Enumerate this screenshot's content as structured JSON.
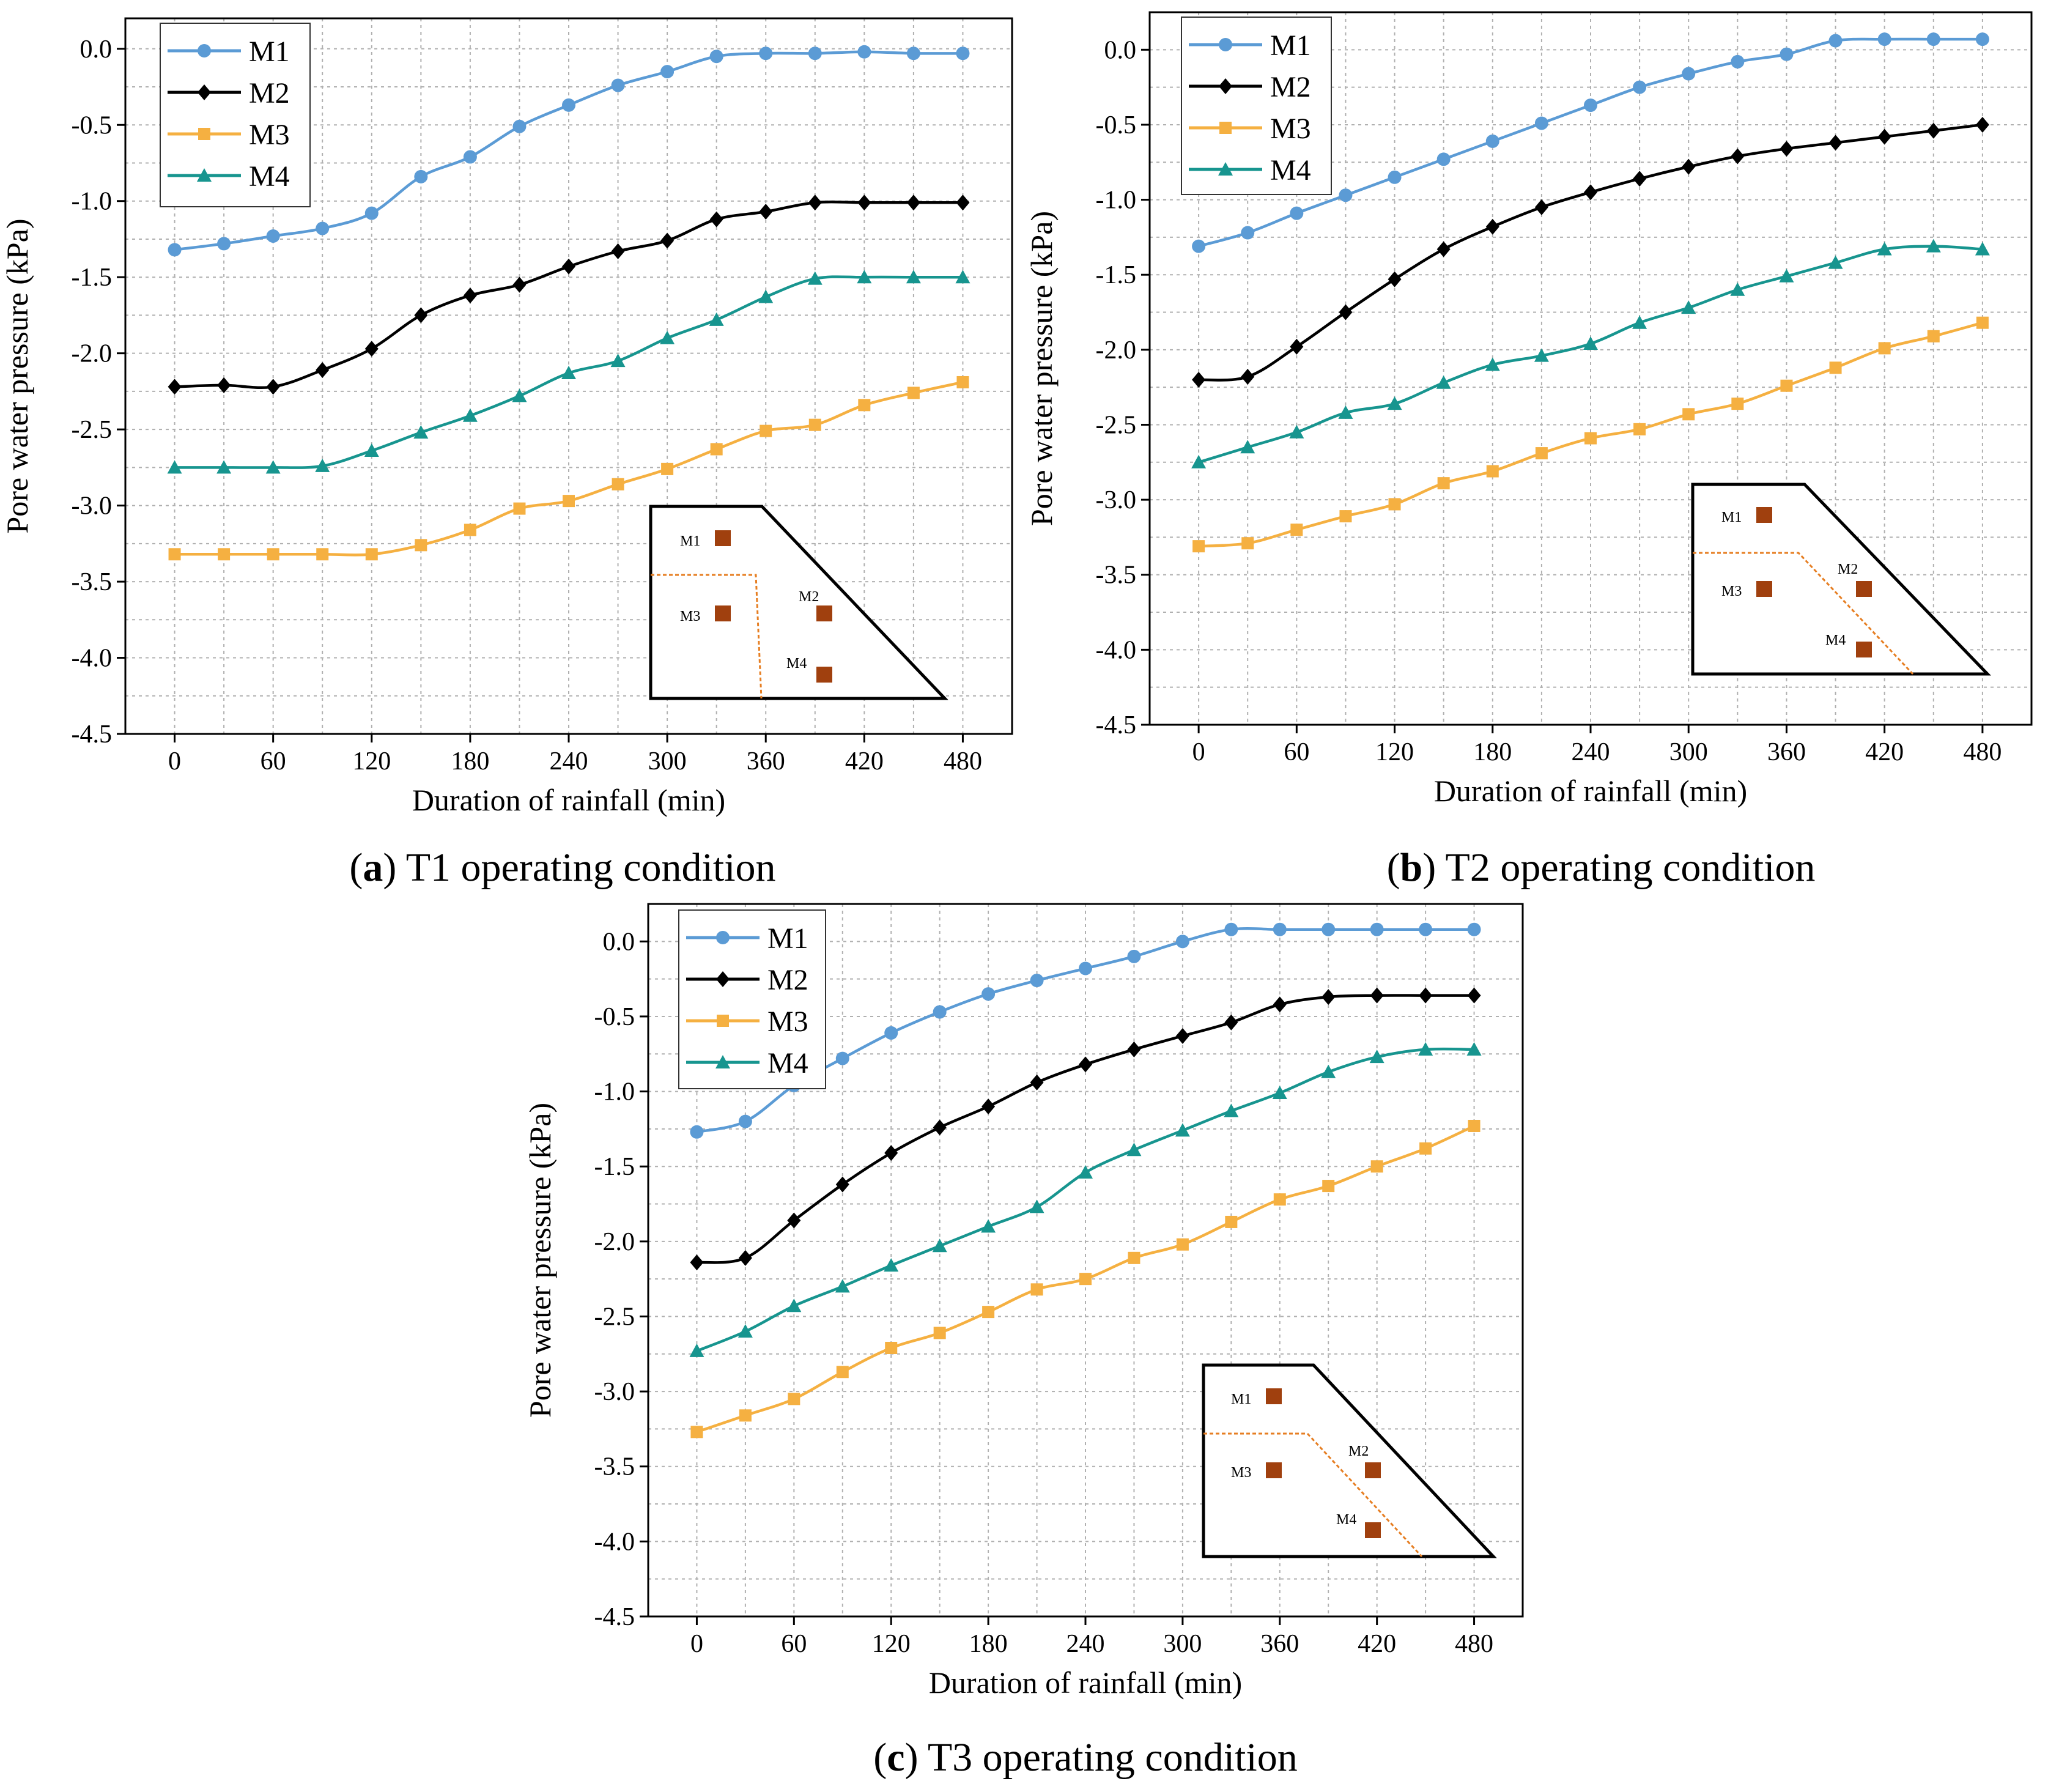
{
  "chart_data": [
    {
      "id": "a",
      "type": "line",
      "caption_letter": "a",
      "caption_rest": " T1 operating condition",
      "xlabel": "Duration of rainfall (min)",
      "ylabel": "Pore water pressure (kPa)",
      "xticks": [
        0,
        60,
        120,
        180,
        240,
        300,
        360,
        420,
        480
      ],
      "yticks": [
        "0.0",
        "-0.5",
        "-1.0",
        "-1.5",
        "-2.0",
        "-2.5",
        "-3.0",
        "-3.5",
        "-4.0",
        "-4.5"
      ],
      "xlim": [
        -30,
        510
      ],
      "ylim": [
        -4.5,
        0.2
      ],
      "legend_position": "top-left",
      "grid": true,
      "x": [
        0,
        30,
        60,
        90,
        120,
        150,
        180,
        210,
        240,
        270,
        300,
        330,
        360,
        390,
        420,
        450,
        480
      ],
      "series": [
        {
          "name": "M1",
          "values": [
            -1.32,
            -1.28,
            -1.23,
            -1.18,
            -1.08,
            -0.84,
            -0.71,
            -0.51,
            -0.37,
            -0.24,
            -0.15,
            -0.05,
            -0.03,
            -0.03,
            -0.02,
            -0.03,
            -0.03
          ]
        },
        {
          "name": "M2",
          "values": [
            -2.22,
            -2.21,
            -2.22,
            -2.11,
            -1.97,
            -1.75,
            -1.62,
            -1.55,
            -1.43,
            -1.33,
            -1.26,
            -1.12,
            -1.07,
            -1.01,
            -1.01,
            -1.01,
            -1.01
          ]
        },
        {
          "name": "M3",
          "values": [
            -3.32,
            -3.32,
            -3.32,
            -3.32,
            -3.32,
            -3.26,
            -3.16,
            -3.02,
            -2.97,
            -2.86,
            -2.76,
            -2.63,
            -2.51,
            -2.47,
            -2.34,
            -2.26,
            -2.19
          ]
        },
        {
          "name": "M4",
          "values": [
            -2.75,
            -2.75,
            -2.75,
            -2.74,
            -2.64,
            -2.52,
            -2.41,
            -2.28,
            -2.13,
            -2.05,
            -1.9,
            -1.78,
            -1.63,
            -1.51,
            -1.5,
            -1.5,
            -1.5
          ]
        }
      ],
      "inset_labels": [
        "M1",
        "M2",
        "M3",
        "M4"
      ]
    },
    {
      "id": "b",
      "type": "line",
      "caption_letter": "b",
      "caption_rest": " T2 operating condition",
      "xlabel": "Duration of rainfall (min)",
      "ylabel": "Pore water pressure (kPa)",
      "xticks": [
        0,
        60,
        120,
        180,
        240,
        300,
        360,
        420,
        480
      ],
      "yticks": [
        "0.0",
        "-0.5",
        "-1.0",
        "-1.5",
        "-2.0",
        "-2.5",
        "-3.0",
        "-3.5",
        "-4.0",
        "-4.5"
      ],
      "xlim": [
        -30,
        510
      ],
      "ylim": [
        -4.5,
        0.25
      ],
      "legend_position": "top-left",
      "grid": true,
      "x": [
        0,
        30,
        60,
        90,
        120,
        150,
        180,
        210,
        240,
        270,
        300,
        330,
        360,
        390,
        420,
        450,
        480
      ],
      "series": [
        {
          "name": "M1",
          "values": [
            -1.31,
            -1.22,
            -1.09,
            -0.97,
            -0.85,
            -0.73,
            -0.61,
            -0.49,
            -0.37,
            -0.25,
            -0.16,
            -0.08,
            -0.03,
            0.06,
            0.07,
            0.07,
            0.07
          ]
        },
        {
          "name": "M2",
          "values": [
            -2.2,
            -2.18,
            -1.98,
            -1.75,
            -1.53,
            -1.33,
            -1.18,
            -1.05,
            -0.95,
            -0.86,
            -0.78,
            -0.71,
            -0.66,
            -0.62,
            -0.58,
            -0.54,
            -0.5
          ]
        },
        {
          "name": "M3",
          "values": [
            -3.31,
            -3.29,
            -3.2,
            -3.11,
            -3.03,
            -2.89,
            -2.81,
            -2.69,
            -2.59,
            -2.53,
            -2.43,
            -2.36,
            -2.24,
            -2.12,
            -1.99,
            -1.91,
            -1.82
          ]
        },
        {
          "name": "M4",
          "values": [
            -2.75,
            -2.65,
            -2.55,
            -2.42,
            -2.36,
            -2.22,
            -2.1,
            -2.04,
            -1.96,
            -1.82,
            -1.72,
            -1.6,
            -1.51,
            -1.42,
            -1.33,
            -1.31,
            -1.33
          ]
        }
      ],
      "inset_labels": [
        "M1",
        "M2",
        "M3",
        "M4"
      ]
    },
    {
      "id": "c",
      "type": "line",
      "caption_letter": "c",
      "caption_rest": " T3 operating condition",
      "xlabel": "Duration of rainfall (min)",
      "ylabel": "Pore water pressure (kPa)",
      "xticks": [
        0,
        60,
        120,
        180,
        240,
        300,
        360,
        420,
        480
      ],
      "yticks": [
        "0.0",
        "-0.5",
        "-1.0",
        "-1.5",
        "-2.0",
        "-2.5",
        "-3.0",
        "-3.5",
        "-4.0",
        "-4.5"
      ],
      "xlim": [
        -30,
        510
      ],
      "ylim": [
        -4.5,
        0.25
      ],
      "legend_position": "top-left",
      "grid": true,
      "x": [
        0,
        30,
        60,
        90,
        120,
        150,
        180,
        210,
        240,
        270,
        300,
        330,
        360,
        390,
        420,
        450,
        480
      ],
      "series": [
        {
          "name": "M1",
          "values": [
            -1.27,
            -1.2,
            -0.96,
            -0.78,
            -0.61,
            -0.47,
            -0.35,
            -0.26,
            -0.18,
            -0.1,
            0.0,
            0.08,
            0.08,
            0.08,
            0.08,
            0.08,
            0.08
          ]
        },
        {
          "name": "M2",
          "values": [
            -2.14,
            -2.11,
            -1.86,
            -1.62,
            -1.41,
            -1.24,
            -1.1,
            -0.94,
            -0.82,
            -0.72,
            -0.63,
            -0.54,
            -0.42,
            -0.37,
            -0.36,
            -0.36,
            -0.36
          ]
        },
        {
          "name": "M3",
          "values": [
            -3.27,
            -3.16,
            -3.05,
            -2.87,
            -2.71,
            -2.61,
            -2.47,
            -2.32,
            -2.25,
            -2.11,
            -2.02,
            -1.87,
            -1.72,
            -1.63,
            -1.5,
            -1.38,
            -1.23
          ]
        },
        {
          "name": "M4",
          "values": [
            -2.73,
            -2.6,
            -2.43,
            -2.3,
            -2.16,
            -2.03,
            -1.9,
            -1.77,
            -1.54,
            -1.39,
            -1.26,
            -1.13,
            -1.01,
            -0.87,
            -0.77,
            -0.72,
            -0.72
          ]
        }
      ],
      "inset_labels": [
        "M1",
        "M2",
        "M3",
        "M4"
      ]
    }
  ],
  "style": {
    "series_colors": {
      "M1": "#5b9bd5",
      "M2": "#000000",
      "M3": "#f5b041",
      "M4": "#17958f"
    },
    "series_markers": {
      "M1": "circle",
      "M2": "diamond",
      "M3": "square",
      "M4": "triangle"
    },
    "inset_marker_color": "#a0400e",
    "inset_dashed_line_color": "#e67e22"
  }
}
